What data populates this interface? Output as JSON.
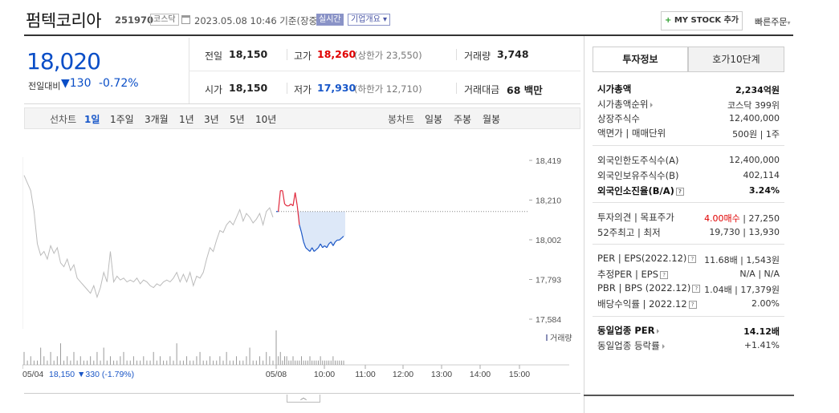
{
  "header": {
    "name": "펌텍코리아",
    "code": "251970",
    "market": "코스닥",
    "datetime": "2023.05.08 10:46 기준(장중)",
    "realtime": "실시간",
    "overview": "기업개요",
    "mystock": "MY STOCK 추가",
    "mystock_plus": "+",
    "quick_order": "빠른주문"
  },
  "price": {
    "current": "18,020",
    "change_label": "전일대비",
    "change": "▼130",
    "change_pct": "-0.72%",
    "color": "#0a4ec7"
  },
  "quote": {
    "prev_label": "전일",
    "prev": "18,150",
    "high_label": "고가",
    "high": "18,260",
    "upper_limit": "(상한가 23,550)",
    "volume_label": "거래량",
    "volume": "3,748",
    "open_label": "시가",
    "open": "18,150",
    "low_label": "저가",
    "low": "17,930",
    "lower_limit": "(하한가 12,710)",
    "amount_label": "거래대금",
    "amount": "68 백만"
  },
  "tabs": {
    "line_chart": "선차트",
    "periods": [
      "1일",
      "1주일",
      "3개월",
      "1년",
      "3년",
      "5년",
      "10년"
    ],
    "candle_chart": "봉차트",
    "candles": [
      "일봉",
      "주봉",
      "월봉"
    ]
  },
  "chart_data": {
    "type": "line",
    "y_ticks": [
      "18,419",
      "18,210",
      "18,002",
      "17,793",
      "17,584"
    ],
    "ylim": [
      17584,
      18419
    ],
    "reference_price": 18150,
    "volume_label": "거래량",
    "x_ticks": [
      "05/04",
      "05/08",
      "10:00",
      "11:00",
      "12:00",
      "13:00",
      "14:00",
      "15:00"
    ],
    "prev_day_summary": {
      "date": "05/04",
      "close": "18,150",
      "change": "▼330",
      "change_pct": "(-1.79%)"
    },
    "prev_series": [
      18340,
      18300,
      18260,
      18150,
      17980,
      17920,
      17940,
      17900,
      17970,
      17930,
      17960,
      17880,
      17860,
      17900,
      17840,
      17870,
      17800,
      17780,
      17760,
      17740,
      17720,
      17760,
      17700,
      17750,
      17830,
      17780,
      17940,
      17780,
      17810,
      17790,
      17800,
      17780,
      17790,
      17780,
      17800,
      17770,
      17790,
      17780,
      17760,
      17750,
      17770,
      17760,
      17780,
      17790,
      17780,
      17800,
      17830,
      17780,
      17820,
      17780,
      17830,
      17760,
      17810,
      17800,
      17830,
      17900,
      17960,
      17940,
      18000,
      18050,
      18040,
      18080,
      18100,
      18080,
      18120,
      18160,
      18100,
      18140,
      18120,
      18090,
      18110,
      18140,
      18080,
      18150,
      18170,
      18120
    ],
    "today_series": [
      18150,
      18150,
      18260,
      18260,
      18190,
      18180,
      18180,
      18190,
      18180,
      18250,
      18180,
      18080,
      18040,
      17990,
      17960,
      17950,
      17940,
      17960,
      17940,
      17950,
      17960,
      17980,
      17960,
      17970,
      17960,
      17980,
      17990,
      17970,
      17990,
      18000,
      18000,
      18010,
      18020
    ],
    "volume_prev": [
      3,
      1,
      2,
      1,
      1,
      4,
      2,
      1,
      3,
      1,
      2,
      5,
      1,
      2,
      1,
      3,
      1,
      2,
      1,
      1,
      2,
      1,
      3,
      1,
      4,
      1,
      2,
      1,
      1,
      2,
      3,
      1,
      1,
      2,
      1,
      1,
      2,
      1,
      1,
      3,
      1,
      2,
      1,
      1,
      2,
      1,
      5,
      1,
      1,
      2,
      1,
      1,
      2,
      3,
      1,
      1,
      2,
      1,
      1,
      2,
      1,
      3,
      1,
      1,
      2,
      1,
      1,
      2,
      4,
      1,
      1,
      2,
      1,
      3,
      2,
      1
    ],
    "volume_today": [
      8,
      2,
      3,
      1,
      2,
      2,
      1,
      1,
      2,
      1,
      1,
      1,
      2,
      1,
      1,
      1,
      2,
      1,
      1,
      1,
      1,
      2,
      1,
      1,
      1,
      1,
      1,
      2,
      1,
      1,
      1,
      1,
      1
    ]
  },
  "right_panel": {
    "tab_invest": "투자정보",
    "tab_orderbook": "호가10단계",
    "rows1": [
      {
        "label": "시가총액",
        "value": "2,234억원"
      },
      {
        "label": "시가총액순위",
        "value": "코스닥 399위"
      },
      {
        "label": "상장주식수",
        "value": "12,400,000"
      },
      {
        "label": "액면가 | 매매단위",
        "value": "500원 | 1주"
      }
    ],
    "rows2": [
      {
        "label": "외국인한도주식수(A)",
        "value": "12,400,000"
      },
      {
        "label": "외국인보유주식수(B)",
        "value": "402,114"
      },
      {
        "label": "외국인소진율(B/A)",
        "value": "3.24%"
      }
    ],
    "opinion_label": "투자의견 | 목표주가",
    "opinion": "4.00매수",
    "target": "| 27,250",
    "week52_label": "52주최고 | 최저",
    "week52": "19,730 | 13,930",
    "per_label": "PER | EPS(2022.12)",
    "per": "11.68배 | 1,543원",
    "eper_label": "추정PER | EPS",
    "eper": "N/A | N/A",
    "pbr_label": "PBR | BPS (2022.12)",
    "pbr": "1.04배 | 17,379원",
    "div_label": "배당수익률 | 2022.12",
    "div": "2.00%",
    "ind_per_label": "동일업종 PER",
    "ind_per": "14.12배",
    "ind_chg_label": "동일업종 등락률",
    "ind_chg": "+1.41%"
  }
}
